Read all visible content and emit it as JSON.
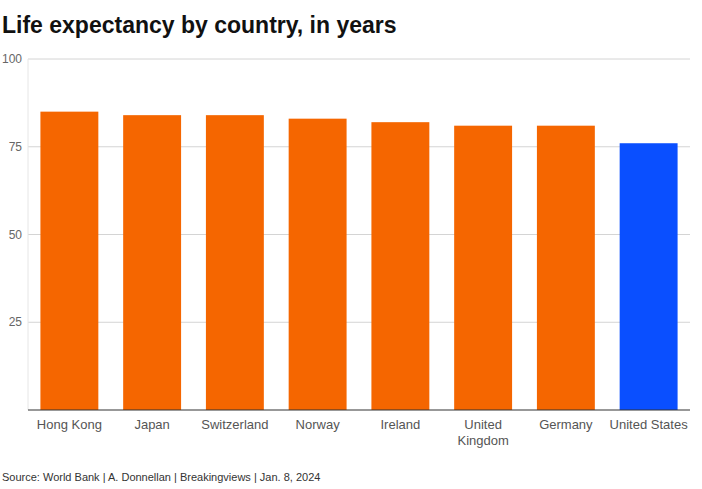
{
  "chart_data": {
    "type": "bar",
    "title": "Life expectancy by country, in years",
    "source": "Source: World Bank | A. Donnellan | Breakingviews | Jan. 8, 2024",
    "categories": [
      "Hong Kong",
      "Japan",
      "Switzerland",
      "Norway",
      "Ireland",
      "United Kingdom",
      "Germany",
      "United States"
    ],
    "values": [
      85,
      84,
      84,
      83,
      82,
      81,
      81,
      76
    ],
    "colors": [
      "#f56600",
      "#f56600",
      "#f56600",
      "#f56600",
      "#f56600",
      "#f56600",
      "#f56600",
      "#0a4fff"
    ],
    "ylim": [
      0,
      100
    ],
    "yticks": [
      25,
      50,
      75,
      100
    ],
    "grid": true
  }
}
